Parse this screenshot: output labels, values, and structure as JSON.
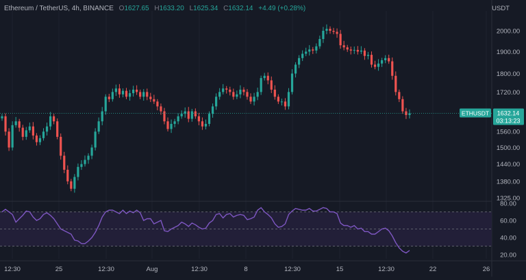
{
  "header": {
    "symbol_desc": "Ethereum / TetherUS, 4h, BINANCE",
    "o_label": "O",
    "o_value": "1627.65",
    "h_label": "H",
    "h_value": "1633.20",
    "l_label": "L",
    "l_value": "1625.34",
    "c_label": "C",
    "c_value": "1632.14",
    "change": "+4.49 (+0.28%)"
  },
  "price_axis": {
    "unit": "USDT",
    "ticks": [
      "2000.00",
      "1900.00",
      "1800.00",
      "1720.00",
      "1560.00",
      "1500.00",
      "1440.00",
      "1380.00",
      "1325.00"
    ]
  },
  "rsi_axis": {
    "ticks": [
      "80.00",
      "60.00",
      "40.00",
      "20.00"
    ]
  },
  "time_axis": {
    "labels": [
      "12:30",
      "25",
      "12:30",
      "Aug",
      "12:30",
      "8",
      "12:30",
      "15",
      "12:30",
      "22",
      "26"
    ]
  },
  "last_price_tag": {
    "symbol": "ETHUSDT",
    "price": "1632.14",
    "countdown": "03:13:23"
  },
  "colors": {
    "background": "#161a25",
    "up": "#26a69a",
    "down": "#ef5350",
    "rsi_line": "#7e57c2",
    "rsi_band": "#221f38",
    "grid": "#1f2330",
    "axis_text": "#b2b5be"
  },
  "chart_data": [
    {
      "type": "candlestick",
      "title": "Ethereum / TetherUS, 4h, BINANCE",
      "ylabel": "USDT",
      "ylim": [
        1325,
        2040
      ],
      "scale": "log",
      "grid": false,
      "closes": [
        1620,
        1560,
        1500,
        1585,
        1600,
        1575,
        1540,
        1565,
        1580,
        1545,
        1520,
        1535,
        1560,
        1580,
        1620,
        1600,
        1540,
        1470,
        1420,
        1380,
        1355,
        1395,
        1430,
        1440,
        1455,
        1470,
        1500,
        1560,
        1600,
        1640,
        1700,
        1690,
        1720,
        1735,
        1710,
        1725,
        1700,
        1715,
        1730,
        1720,
        1700,
        1720,
        1700,
        1690,
        1680,
        1660,
        1640,
        1600,
        1570,
        1590,
        1600,
        1620,
        1630,
        1640,
        1610,
        1640,
        1620,
        1600,
        1580,
        1590,
        1630,
        1660,
        1700,
        1720,
        1735,
        1730,
        1720,
        1700,
        1710,
        1730,
        1720,
        1700,
        1680,
        1700,
        1720,
        1780,
        1790,
        1770,
        1730,
        1700,
        1680,
        1680,
        1660,
        1720,
        1800,
        1840,
        1870,
        1890,
        1900,
        1910,
        1905,
        1925,
        1960,
        2000,
        2010,
        2000,
        1995,
        1985,
        1930,
        1920,
        1910,
        1905,
        1908,
        1900,
        1905,
        1880,
        1885,
        1840,
        1830,
        1845,
        1860,
        1870,
        1855,
        1790,
        1720,
        1690,
        1640,
        1625,
        1632
      ]
    },
    {
      "type": "line",
      "series": [
        {
          "values": [
            70,
            73,
            70,
            67,
            58,
            62,
            66,
            71,
            70,
            64,
            60,
            62,
            67,
            69,
            66,
            62,
            56,
            50,
            48,
            46,
            44,
            37,
            36,
            33,
            33,
            36,
            40,
            46,
            54,
            64,
            70,
            72,
            72,
            70,
            68,
            72,
            68,
            71,
            69,
            72,
            69,
            60,
            62,
            62,
            56,
            58,
            60,
            48,
            47,
            50,
            52,
            54,
            58,
            56,
            53,
            57,
            55,
            52,
            50,
            51,
            57,
            60,
            67,
            68,
            63,
            67,
            68,
            64,
            66,
            67,
            66,
            61,
            62,
            64,
            72,
            75,
            70,
            67,
            63,
            56,
            52,
            53,
            56,
            67,
            71,
            74,
            73,
            72,
            72,
            74,
            71,
            71,
            73,
            75,
            74,
            70,
            70,
            68,
            57,
            54,
            54,
            52,
            54,
            50,
            51,
            47,
            47,
            44,
            44,
            47,
            50,
            51,
            48,
            42,
            34,
            28,
            24,
            22,
            25
          ]
        }
      ],
      "ylim": [
        20,
        80
      ],
      "band": [
        30,
        70
      ]
    }
  ]
}
